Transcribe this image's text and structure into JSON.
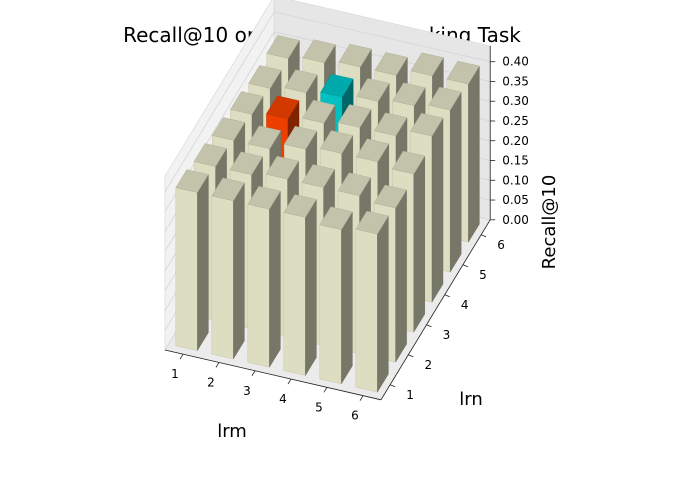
{
  "chart_data": {
    "type": "bar3d",
    "title": "Recall@10 on Explanation Ranking Task",
    "xlabel": "lrm",
    "ylabel": "lrn",
    "zlabel": "Recall@10",
    "x_ticks": [
      "1",
      "2",
      "3",
      "4",
      "5",
      "6"
    ],
    "y_ticks": [
      "1",
      "2",
      "3",
      "4",
      "5",
      "6"
    ],
    "z_ticks": [
      "0.00",
      "0.05",
      "0.10",
      "0.15",
      "0.20",
      "0.25",
      "0.30",
      "0.35",
      "0.40"
    ],
    "zlim": [
      0,
      0.42
    ],
    "x": [
      1,
      2,
      3,
      4,
      5,
      6
    ],
    "y": [
      1,
      2,
      3,
      4,
      5,
      6
    ],
    "values": [
      [
        0.4,
        0.39,
        0.38,
        0.37,
        0.36,
        0.36
      ],
      [
        0.4,
        0.39,
        0.38,
        0.38,
        0.37,
        0.37
      ],
      [
        0.4,
        0.4,
        0.4,
        0.39,
        0.38,
        0.38
      ],
      [
        0.4,
        0.4,
        0.41,
        0.4,
        0.39,
        0.38
      ],
      [
        0.39,
        0.4,
        0.41,
        0.4,
        0.4,
        0.4
      ],
      [
        0.4,
        0.39,
        0.4,
        0.42,
        0.41,
        0.4
      ]
    ],
    "highlights": [
      {
        "x": 2,
        "y": 4,
        "color": "#ff4500"
      },
      {
        "x": 3,
        "y": 5,
        "color": "#00ced1"
      }
    ],
    "bar_color": "#eeeed0"
  }
}
